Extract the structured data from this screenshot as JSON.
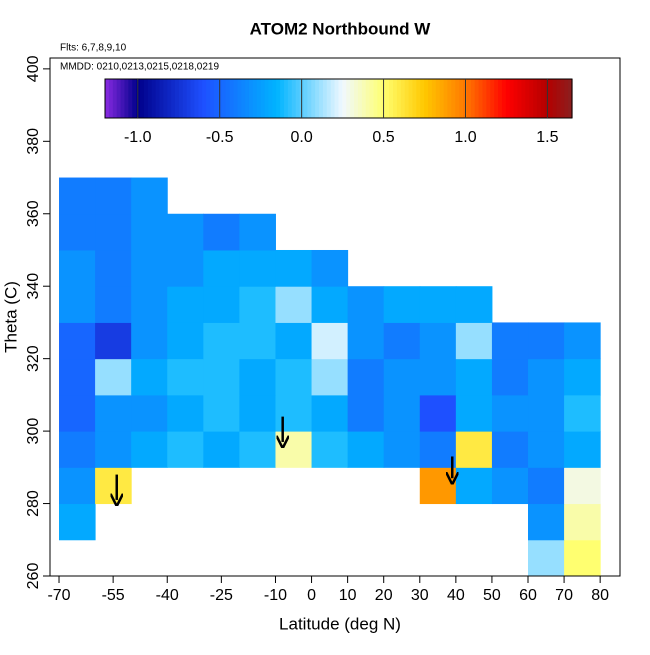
{
  "chart_data": {
    "type": "heatmap",
    "title": "ATOM2 Northbound W",
    "subtitle": "Flts: 6,7,8,9,10",
    "annotation": "MMDD: 0210,0213,0215,0218,0219",
    "xlabel": "Latitude (deg N)",
    "ylabel": "Theta (C)",
    "x": [
      -65,
      -55,
      -45,
      -35,
      -25,
      -15,
      -5,
      5,
      15,
      25,
      35,
      45,
      55,
      65,
      75
    ],
    "y": [
      265,
      275,
      285,
      295,
      305,
      315,
      325,
      335,
      345,
      355,
      365
    ],
    "values": [
      [
        null,
        null,
        null,
        null,
        null,
        null,
        null,
        null,
        null,
        null,
        null,
        null,
        null,
        0.1,
        0.5
      ],
      [
        -0.2,
        null,
        null,
        null,
        null,
        null,
        null,
        null,
        null,
        null,
        null,
        null,
        null,
        -0.3,
        0.4
      ],
      [
        -0.3,
        0.6,
        null,
        null,
        null,
        null,
        null,
        null,
        null,
        null,
        0.9,
        -0.2,
        -0.3,
        -0.4,
        0.3
      ],
      [
        -0.4,
        -0.3,
        -0.2,
        -0.1,
        -0.2,
        -0.1,
        0.4,
        -0.1,
        -0.2,
        -0.3,
        -0.4,
        0.6,
        -0.4,
        -0.3,
        -0.2
      ],
      [
        -0.5,
        -0.3,
        -0.3,
        -0.2,
        -0.1,
        -0.2,
        -0.1,
        -0.2,
        -0.4,
        -0.3,
        -0.6,
        -0.2,
        -0.3,
        -0.3,
        -0.1
      ],
      [
        -0.5,
        0.1,
        -0.2,
        -0.1,
        -0.1,
        -0.2,
        -0.1,
        0.1,
        -0.4,
        -0.3,
        -0.3,
        -0.2,
        -0.4,
        -0.3,
        -0.2
      ],
      [
        -0.5,
        -0.7,
        -0.3,
        -0.2,
        -0.1,
        -0.1,
        -0.2,
        0.2,
        -0.3,
        -0.4,
        -0.3,
        0.1,
        -0.4,
        -0.4,
        -0.3
      ],
      [
        -0.3,
        -0.4,
        -0.3,
        -0.2,
        -0.2,
        -0.1,
        0.1,
        -0.2,
        -0.3,
        -0.2,
        -0.2,
        -0.2,
        null,
        null,
        null
      ],
      [
        -0.3,
        -0.4,
        -0.3,
        -0.3,
        -0.2,
        -0.2,
        -0.2,
        -0.3,
        null,
        null,
        null,
        null,
        null,
        null,
        null
      ],
      [
        -0.4,
        -0.4,
        -0.3,
        -0.3,
        -0.4,
        -0.3,
        null,
        null,
        null,
        null,
        null,
        null,
        null,
        null,
        null
      ],
      [
        -0.4,
        -0.4,
        -0.3,
        null,
        null,
        null,
        null,
        null,
        null,
        null,
        null,
        null,
        null,
        null,
        null
      ]
    ],
    "cell_size": [
      10,
      10
    ],
    "xlim": [
      -72.5,
      85.5
    ],
    "ylim": [
      260,
      403
    ],
    "xticks": [
      -70,
      -55,
      -40,
      -25,
      -10,
      0,
      10,
      20,
      30,
      40,
      50,
      60,
      70,
      80
    ],
    "yticks": [
      260,
      280,
      300,
      320,
      340,
      360,
      380,
      400
    ],
    "clim": [
      -1.2,
      1.65
    ],
    "cticks": [
      {
        "value": -1,
        "label": "-1.0"
      },
      {
        "value": -0.5,
        "label": "-0.5"
      },
      {
        "value": 0,
        "label": "0.0"
      },
      0.5,
      {
        "value": 1,
        "label": "1.0"
      },
      1.5
    ],
    "colorscale": [
      [
        -1.2,
        "#8a2be2"
      ],
      [
        -1.0,
        "#00008b"
      ],
      [
        -0.6,
        "#1e50ff"
      ],
      [
        -0.15,
        "#00b4ff"
      ],
      [
        0.25,
        "#f0f8ff"
      ],
      [
        0.5,
        "#ffff70"
      ],
      [
        0.75,
        "#ffc800"
      ],
      [
        1.0,
        "#ff7800"
      ],
      [
        1.25,
        "#ff0000"
      ],
      [
        1.5,
        "#b40000"
      ],
      [
        1.65,
        "#8b2020"
      ]
    ],
    "arrows": [
      {
        "x": -54,
        "y": [
          288,
          281
        ]
      },
      {
        "x": -8,
        "y": [
          304,
          297
        ]
      },
      {
        "x": 39,
        "y": [
          293,
          287
        ]
      }
    ]
  }
}
